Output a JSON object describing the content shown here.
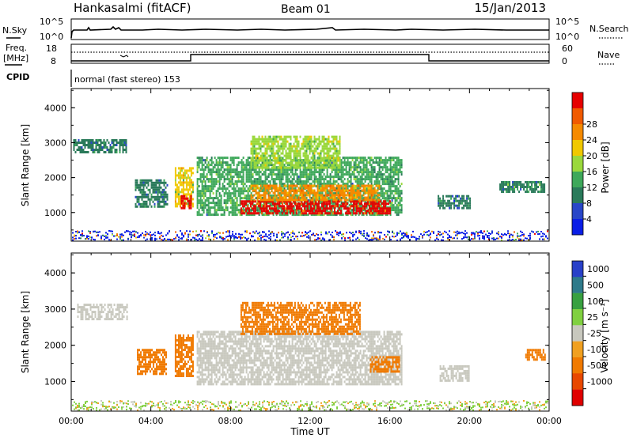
{
  "header": {
    "station": "Hankasalmi (fitACF)",
    "beam": "Beam 01",
    "date": "15/Jan/2013"
  },
  "summary_panels": {
    "nsky_label": "N.Sky",
    "nsky_ticks": [
      "10^5",
      "10^0"
    ],
    "nsearch_label": "N.Search",
    "nsearch_ticks": [
      "10^5",
      "10^0"
    ],
    "freq_label_line1": "Freq.",
    "freq_label_line2": "[MHz]",
    "freq_ticks": [
      "18",
      "8"
    ],
    "nave_label": "Nave",
    "nave_ticks": [
      "60",
      "0"
    ],
    "cpid_label": "CPID",
    "cpid_text": "normal (fast stereo) 153"
  },
  "colors": {
    "frame": "#000000",
    "power_scale": [
      "#0a1ee6",
      "#2846c8",
      "#2a7a5a",
      "#3ea85a",
      "#9ad83c",
      "#f0c800",
      "#f58a00",
      "#f05a00",
      "#e60000"
    ],
    "velocity_scale": [
      "#2840c8",
      "#2e7a8a",
      "#38a040",
      "#80d040",
      "#c8c8be",
      "#f0a020",
      "#f07a00",
      "#e84800",
      "#e00000"
    ]
  },
  "chart_data": [
    {
      "type": "heatmap",
      "panel": "power",
      "ylabel": "Slant Range [km]",
      "ylim": [
        180,
        4550
      ],
      "y_ticks": [
        "1000",
        "2000",
        "3000",
        "4000"
      ],
      "colorbar_label": "Power [dB]",
      "colorbar_ticks": [
        "4",
        "8",
        "12",
        "16",
        "20",
        "24",
        "28"
      ],
      "colorbar_range": [
        0,
        32
      ],
      "regions": [
        {
          "t0": 0.1,
          "t1": 2.8,
          "r0": 2700,
          "r1": 3100,
          "value": 8
        },
        {
          "t0": 3.2,
          "t1": 4.8,
          "r0": 1150,
          "r1": 1950,
          "value": 9
        },
        {
          "t0": 5.2,
          "t1": 6.1,
          "r0": 1150,
          "r1": 2300,
          "value": 18
        },
        {
          "t0": 5.5,
          "t1": 6.0,
          "r0": 1150,
          "r1": 1500,
          "value": 30
        },
        {
          "t0": 6.3,
          "t1": 16.6,
          "r0": 950,
          "r1": 2600,
          "value": 12
        },
        {
          "t0": 8.5,
          "t1": 16.0,
          "r0": 1000,
          "r1": 1350,
          "value": 29
        },
        {
          "t0": 9.0,
          "t1": 15.5,
          "r0": 1350,
          "r1": 1800,
          "value": 22
        },
        {
          "t0": 9.0,
          "t1": 13.5,
          "r0": 2300,
          "r1": 3200,
          "value": 16
        },
        {
          "t0": 18.4,
          "t1": 20.0,
          "r0": 1100,
          "r1": 1500,
          "value": 8
        },
        {
          "t0": 21.5,
          "t1": 23.8,
          "r0": 1600,
          "r1": 1900,
          "value": 10
        }
      ]
    },
    {
      "type": "heatmap",
      "panel": "velocity",
      "ylabel": "Slant Range [km]",
      "xlabel": "Time UT",
      "ylim": [
        180,
        4550
      ],
      "xlim": [
        0,
        24
      ],
      "y_ticks": [
        "1000",
        "2000",
        "3000",
        "4000"
      ],
      "x_ticks": [
        "00:00",
        "04:00",
        "08:00",
        "12:00",
        "16:00",
        "20:00",
        "00:00"
      ],
      "colorbar_label": "Velocity [m s⁻¹]",
      "colorbar_ticks": [
        "1000",
        "500",
        "100",
        "25",
        "-25",
        "-100",
        "-500",
        "-1000"
      ],
      "regions": [
        {
          "t0": 0.3,
          "t1": 2.8,
          "r0": 2750,
          "r1": 3150,
          "value": 0
        },
        {
          "t0": 3.3,
          "t1": 4.8,
          "r0": 1200,
          "r1": 1900,
          "value": -150
        },
        {
          "t0": 5.2,
          "t1": 6.1,
          "r0": 1150,
          "r1": 2300,
          "value": -200
        },
        {
          "t0": 6.3,
          "t1": 16.6,
          "r0": 950,
          "r1": 2400,
          "value": 0
        },
        {
          "t0": 8.5,
          "t1": 14.5,
          "r0": 2300,
          "r1": 3200,
          "value": -300
        },
        {
          "t0": 15.0,
          "t1": 16.5,
          "r0": 1300,
          "r1": 1700,
          "value": -250
        },
        {
          "t0": 18.5,
          "t1": 20.0,
          "r0": 1050,
          "r1": 1450,
          "value": 0
        },
        {
          "t0": 22.8,
          "t1": 23.8,
          "r0": 1600,
          "r1": 1900,
          "value": -150
        }
      ]
    }
  ]
}
